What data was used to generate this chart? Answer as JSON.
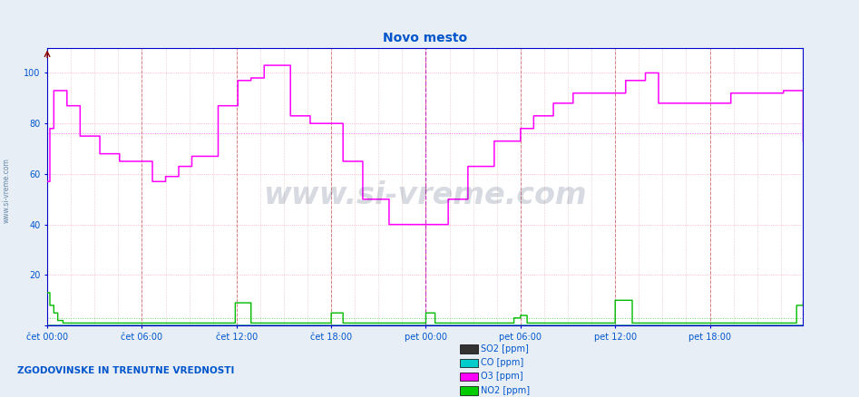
{
  "title": "Novo mesto",
  "title_color": "#0055cc",
  "title_fontsize": 10,
  "bg_color": "#e8eef5",
  "plot_bg_color": "#ffffff",
  "ylim": [
    0,
    110
  ],
  "xlim": [
    0,
    575
  ],
  "xtick_labels": [
    "čet 00:00",
    "čet 06:00",
    "čet 12:00",
    "čet 18:00",
    "pet 00:00",
    "pet 06:00",
    "pet 12:00",
    "pet 18:00"
  ],
  "xtick_positions": [
    0,
    72,
    144,
    216,
    288,
    360,
    432,
    504
  ],
  "ytick_positions": [
    0,
    20,
    40,
    60,
    80,
    100
  ],
  "ytick_labels": [
    "",
    "20",
    "40",
    "60",
    "80",
    "100"
  ],
  "grid_color_v_major": "#cc6666",
  "grid_color_v_minor": "#ddaaaa",
  "grid_color_h": "#ff99bb",
  "legend_text": [
    "SO2 [ppm]",
    "CO [ppm]",
    "O3 [ppm]",
    "NO2 [ppm]"
  ],
  "legend_colors": [
    "#333333",
    "#00cccc",
    "#ff00ff",
    "#00cc00"
  ],
  "watermark": "www.si-vreme.com",
  "footnote": "ZGODOVINSKE IN TRENUTNE VREDNOSTI",
  "footnote_color": "#0055cc",
  "axis_color": "#0000cc",
  "tick_label_color": "#0055cc",
  "so2_color": "#222222",
  "co_color": "#00bbbb",
  "o3_color": "#ff00ff",
  "no2_color": "#00bb00",
  "vline_color": "#cc00cc",
  "left_label": "www.si-vreme.com",
  "left_label_color": "#6688aa",
  "o3_hline_y": 76,
  "no2_hline_y": 3
}
